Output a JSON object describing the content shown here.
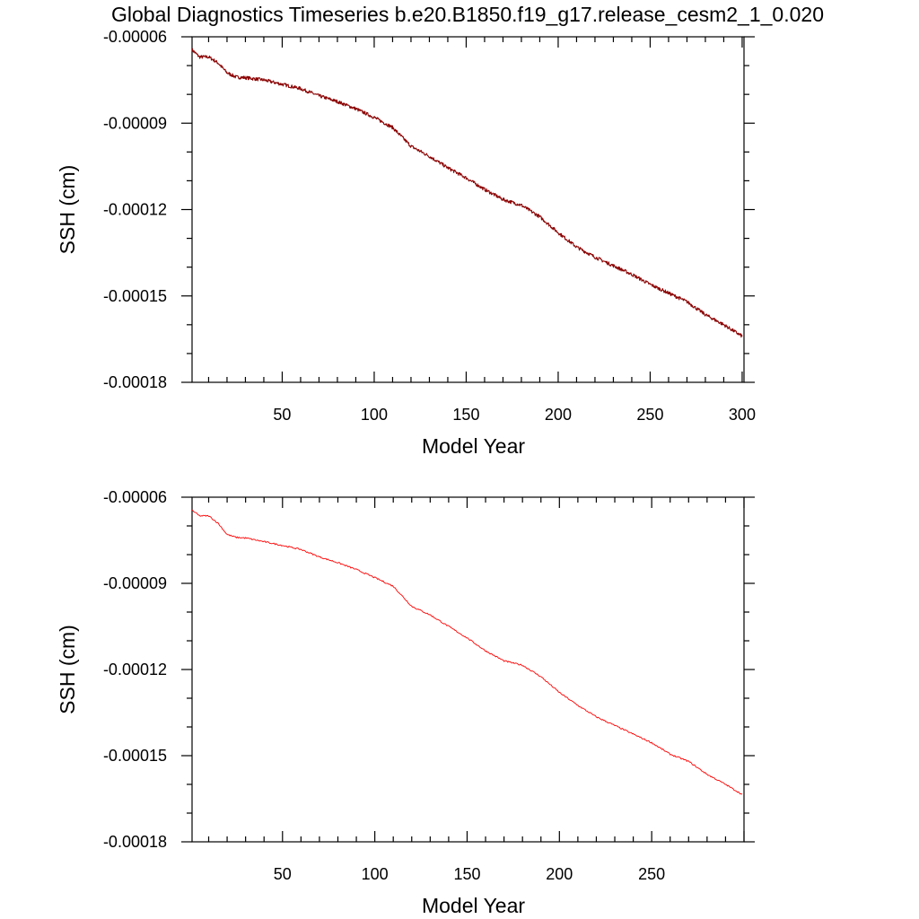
{
  "title": "Global Diagnostics Timeseries b.e20.B1850.f19_g17.release_cesm2_1_0.020",
  "chart_data": [
    {
      "type": "line",
      "xlabel": "Model Year",
      "ylabel": "SSH (cm)",
      "xlim": [
        1,
        301
      ],
      "ylim": [
        -0.00018,
        -6e-05
      ],
      "x_major_ticks": [
        50,
        100,
        150,
        200,
        250,
        300
      ],
      "x_tick_labels": [
        "50",
        "100",
        "150",
        "200",
        "250",
        "300"
      ],
      "y_major_ticks": [
        -6e-05,
        -9e-05,
        -0.00012,
        -0.00015,
        -0.00018
      ],
      "y_tick_labels": [
        "-0.00006",
        "-0.00009",
        "-0.00012",
        "-0.00015",
        "-0.00018"
      ],
      "grid": false,
      "series": [
        {
          "color": "#8b0000",
          "noisy": true,
          "x": [
            1,
            5,
            10,
            15,
            20,
            25,
            30,
            40,
            50,
            60,
            70,
            80,
            90,
            100,
            110,
            120,
            130,
            140,
            150,
            160,
            170,
            180,
            190,
            200,
            210,
            220,
            230,
            240,
            250,
            260,
            270,
            280,
            290,
            300
          ],
          "y": [
            -6.45e-05,
            -6.7e-05,
            -6.7e-05,
            -6.9e-05,
            -7.25e-05,
            -7.4e-05,
            -7.42e-05,
            -7.5e-05,
            -7.65e-05,
            -7.8e-05,
            -8.05e-05,
            -8.25e-05,
            -8.5e-05,
            -8.8e-05,
            -9.15e-05,
            -9.8e-05,
            -0.0001015,
            -0.0001055,
            -0.000109,
            -0.000113,
            -0.0001165,
            -0.0001185,
            -0.0001225,
            -0.000128,
            -0.000133,
            -0.0001365,
            -0.0001395,
            -0.0001425,
            -0.000146,
            -0.000149,
            -0.000152,
            -0.0001565,
            -0.00016,
            -0.000164
          ]
        }
      ]
    },
    {
      "type": "line",
      "xlabel": "Model Year",
      "ylabel": "SSH (cm)",
      "xlim": [
        1,
        300
      ],
      "ylim": [
        -0.00018,
        -6e-05
      ],
      "x_major_ticks": [
        50,
        100,
        150,
        200,
        250
      ],
      "x_tick_labels": [
        "50",
        "100",
        "150",
        "200",
        "250"
      ],
      "y_major_ticks": [
        -6e-05,
        -9e-05,
        -0.00012,
        -0.00015,
        -0.00018
      ],
      "y_tick_labels": [
        "-0.00006",
        "-0.00009",
        "-0.00012",
        "-0.00015",
        "-0.00018"
      ],
      "grid": false,
      "series": [
        {
          "color": "#ff0000",
          "noisy": false,
          "x": [
            1,
            5,
            10,
            15,
            20,
            25,
            30,
            40,
            50,
            60,
            70,
            80,
            90,
            100,
            110,
            120,
            130,
            140,
            150,
            160,
            170,
            180,
            190,
            200,
            210,
            220,
            230,
            240,
            250,
            260,
            270,
            280,
            290,
            299
          ],
          "y": [
            -6.45e-05,
            -6.65e-05,
            -6.65e-05,
            -6.9e-05,
            -7.3e-05,
            -7.4e-05,
            -7.42e-05,
            -7.55e-05,
            -7.68e-05,
            -7.82e-05,
            -8.08e-05,
            -8.28e-05,
            -8.52e-05,
            -8.8e-05,
            -9.1e-05,
            -9.8e-05,
            -0.000101,
            -0.000105,
            -0.000109,
            -0.0001135,
            -0.000117,
            -0.0001185,
            -0.0001225,
            -0.000128,
            -0.0001325,
            -0.0001365,
            -0.0001395,
            -0.0001425,
            -0.0001455,
            -0.0001495,
            -0.000152,
            -0.0001565,
            -0.00016,
            -0.0001635
          ]
        }
      ]
    }
  ]
}
